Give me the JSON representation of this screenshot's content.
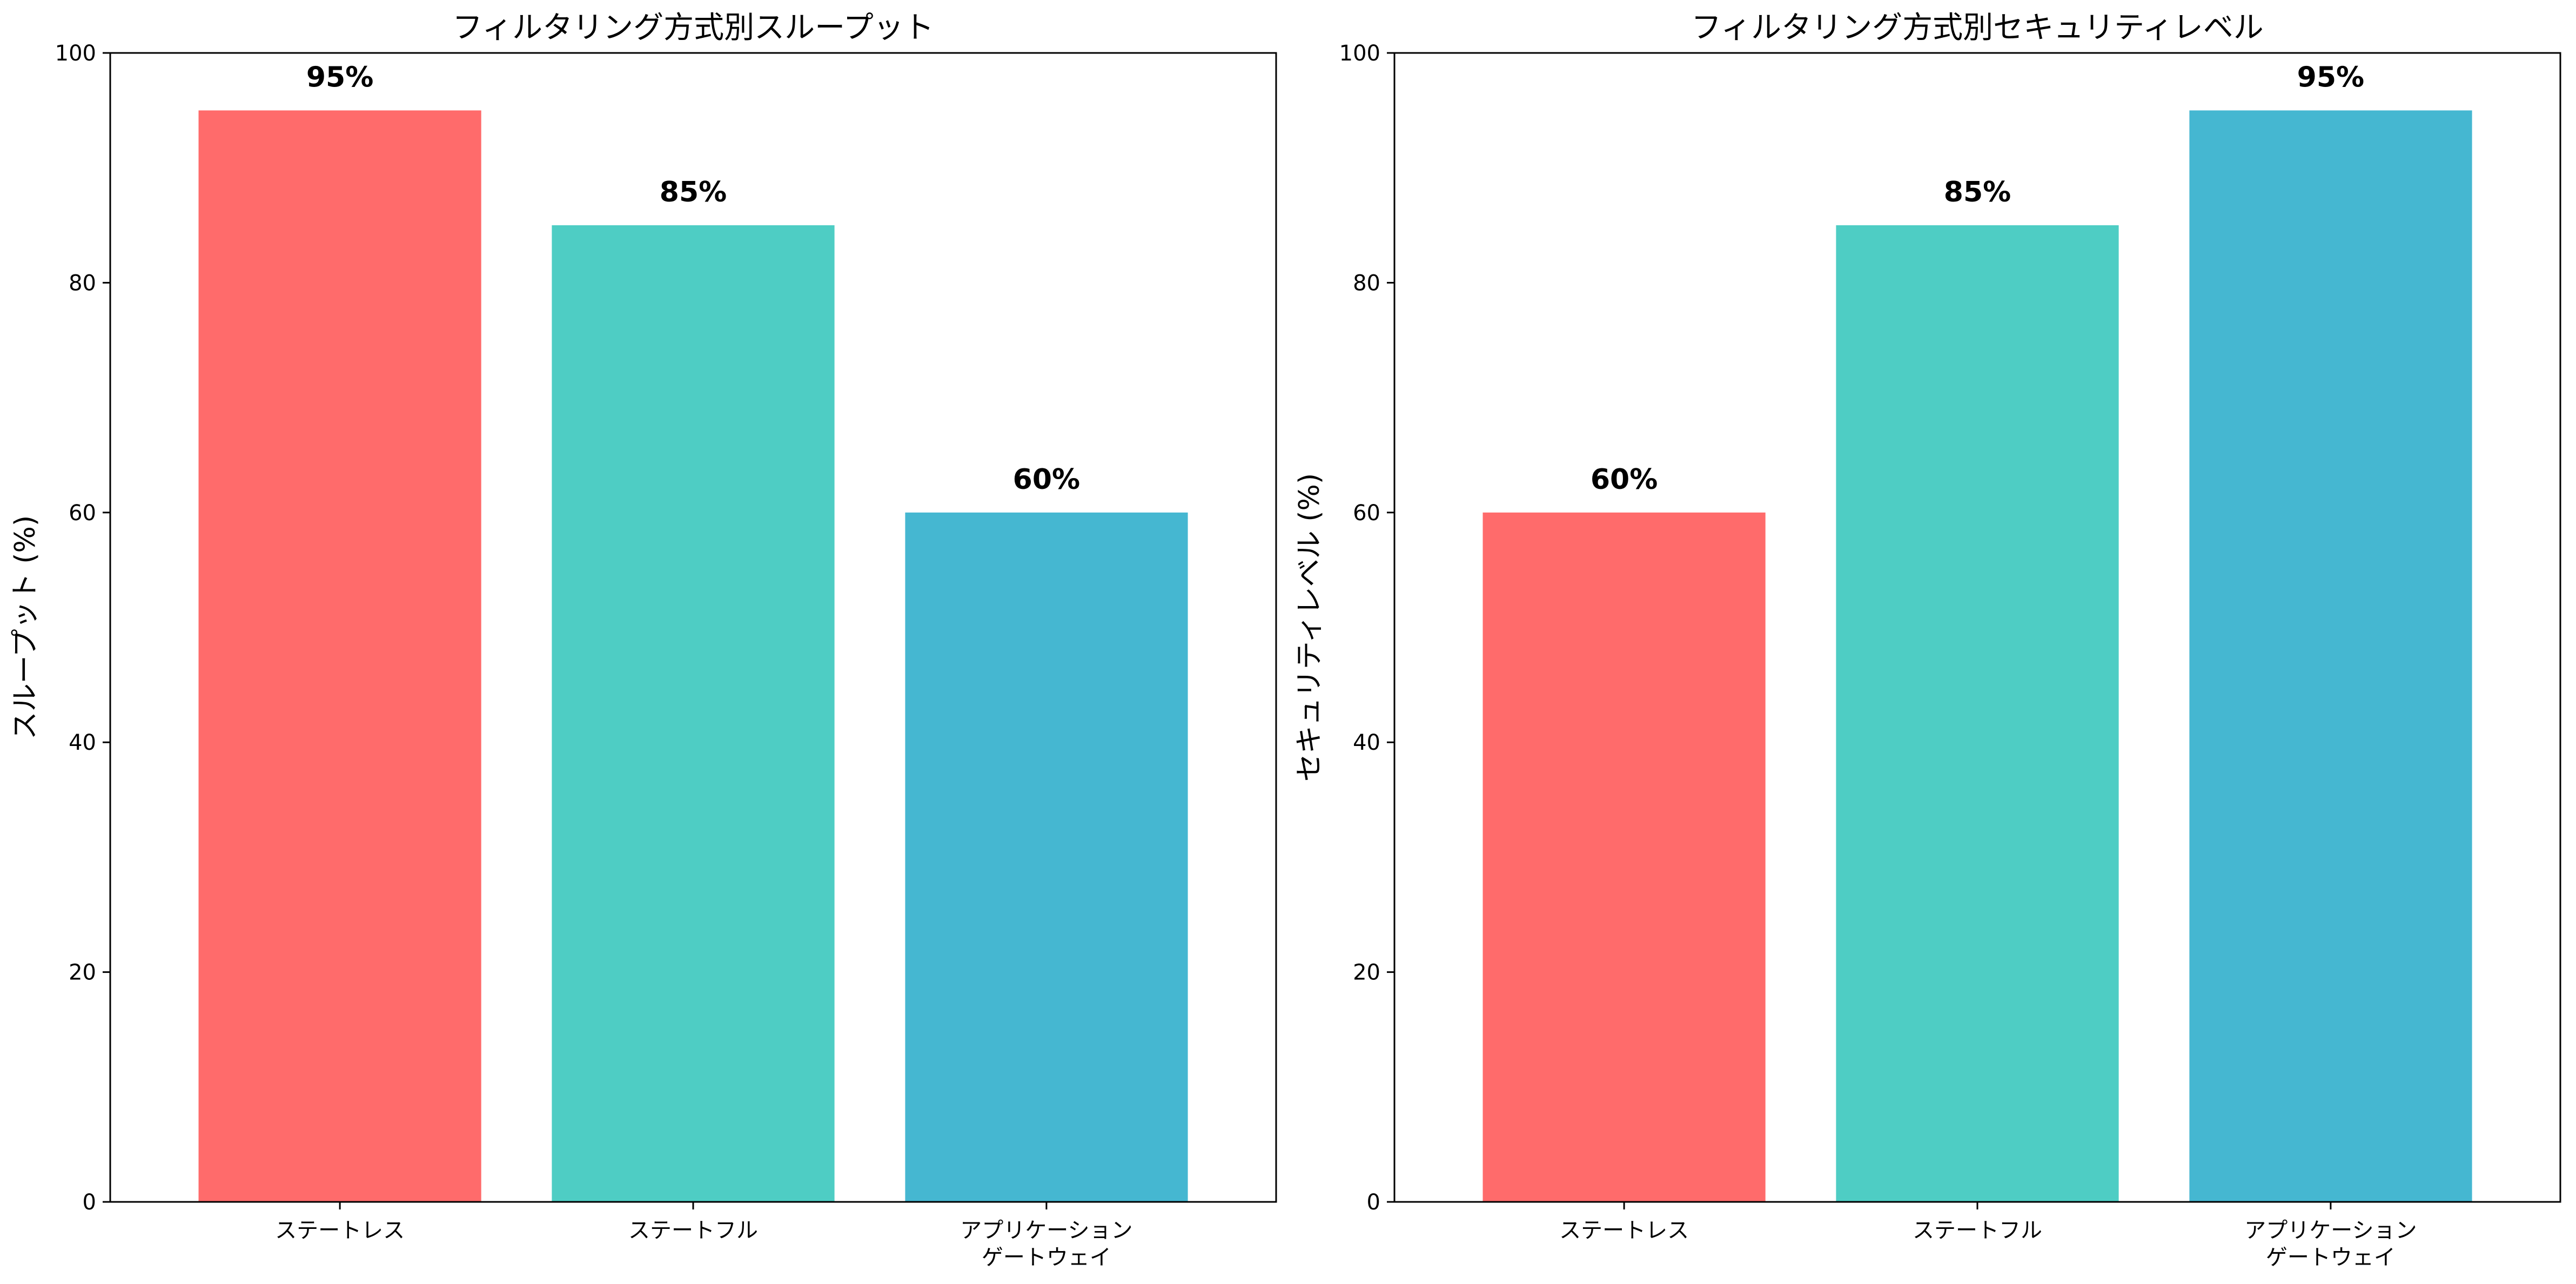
{
  "chart_data": [
    {
      "type": "bar",
      "title": "フィルタリング方式別スループット",
      "xlabel": "",
      "ylabel": "スループット (%)",
      "categories": [
        [
          "ステートレス"
        ],
        [
          "ステートフル"
        ],
        [
          "アプリケーション",
          "ゲートウェイ"
        ]
      ],
      "values": [
        95,
        85,
        60
      ],
      "value_labels": [
        "95%",
        "85%",
        "60%"
      ],
      "colors": [
        "#FF6B6B",
        "#4ECDC4",
        "#45B7D1"
      ],
      "ylim": [
        0,
        100
      ],
      "yticks": [
        0,
        20,
        40,
        60,
        80,
        100
      ],
      "ytick_labels": [
        "0",
        "20",
        "40",
        "60",
        "80",
        "100"
      ],
      "grid": false,
      "legend": false
    },
    {
      "type": "bar",
      "title": "フィルタリング方式別セキュリティレベル",
      "xlabel": "",
      "ylabel": "セキュリティレベル (%)",
      "categories": [
        [
          "ステートレス"
        ],
        [
          "ステートフル"
        ],
        [
          "アプリケーション",
          "ゲートウェイ"
        ]
      ],
      "values": [
        60,
        85,
        95
      ],
      "value_labels": [
        "60%",
        "85%",
        "95%"
      ],
      "colors": [
        "#FF6B6B",
        "#4ECDC4",
        "#45B7D1"
      ],
      "ylim": [
        0,
        100
      ],
      "yticks": [
        0,
        20,
        40,
        60,
        80,
        100
      ],
      "ytick_labels": [
        "0",
        "20",
        "40",
        "60",
        "80",
        "100"
      ],
      "grid": false,
      "legend": false
    }
  ]
}
